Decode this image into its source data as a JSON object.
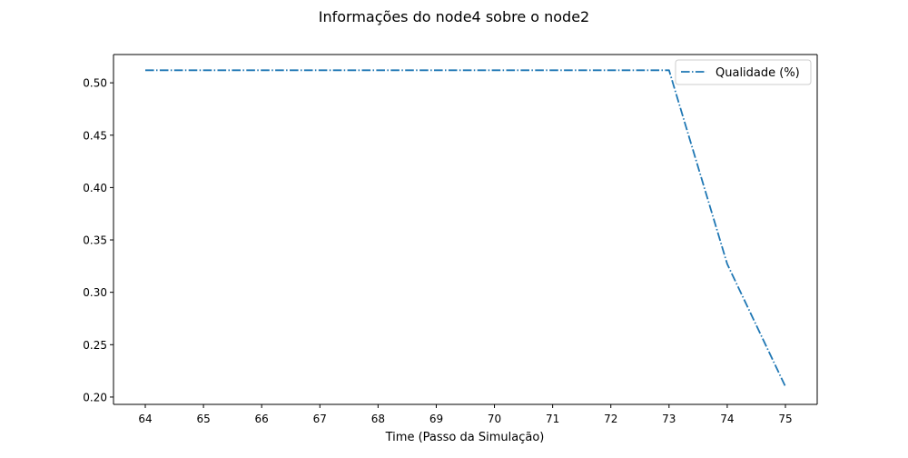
{
  "chart_data": {
    "type": "line",
    "title": "Informações do node4 sobre o node2",
    "xlabel": "Time (Passo da Simulação)",
    "ylabel": "",
    "categories": [
      "64",
      "65",
      "66",
      "67",
      "68",
      "69",
      "70",
      "71",
      "72",
      "73",
      "74",
      "75"
    ],
    "series": [
      {
        "name": "Qualidade (%)",
        "values": [
          0.512,
          0.512,
          0.512,
          0.512,
          0.512,
          0.512,
          0.512,
          0.512,
          0.512,
          0.512,
          0.327,
          0.21
        ],
        "color": "#1f77b4",
        "linestyle": "dash-dot"
      }
    ],
    "ylim": [
      0.193,
      0.527
    ],
    "yticks": [
      "0.20",
      "0.25",
      "0.30",
      "0.35",
      "0.40",
      "0.45",
      "0.50"
    ],
    "grid": false,
    "legend_position": "top-right"
  }
}
